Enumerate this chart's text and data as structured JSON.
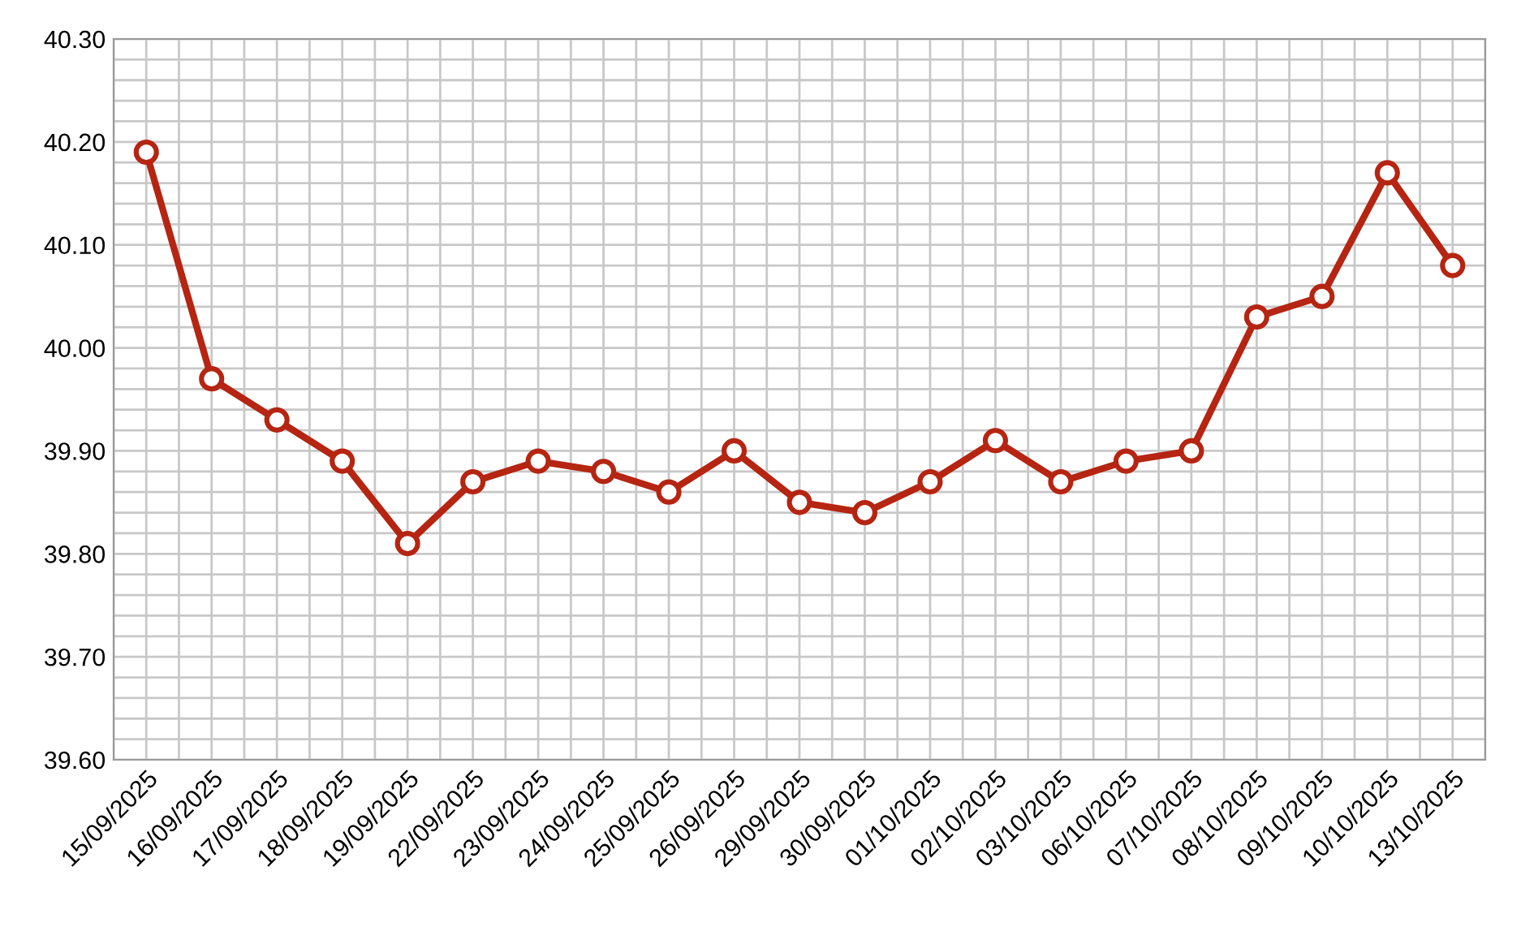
{
  "chart_data": {
    "type": "line",
    "categories": [
      "15/09/2025",
      "16/09/2025",
      "17/09/2025",
      "18/09/2025",
      "19/09/2025",
      "22/09/2025",
      "23/09/2025",
      "24/09/2025",
      "25/09/2025",
      "26/09/2025",
      "29/09/2025",
      "30/09/2025",
      "01/10/2025",
      "02/10/2025",
      "03/10/2025",
      "06/10/2025",
      "07/10/2025",
      "08/10/2025",
      "09/10/2025",
      "10/10/2025",
      "13/10/2025"
    ],
    "series": [
      {
        "color": "#b52512",
        "values": [
          40.19,
          39.97,
          39.93,
          39.89,
          39.81,
          39.87,
          39.89,
          39.88,
          39.86,
          39.9,
          39.85,
          39.84,
          39.87,
          39.91,
          39.87,
          39.89,
          39.9,
          40.03,
          40.05,
          40.17,
          40.08
        ]
      }
    ],
    "ylim": [
      39.6,
      40.3
    ],
    "yticks": [
      {
        "value": 39.6,
        "label": "39.60"
      },
      {
        "value": 39.7,
        "label": "39.70"
      },
      {
        "value": 39.8,
        "label": "39.80"
      },
      {
        "value": 39.9,
        "label": "39.90"
      },
      {
        "value": 40.0,
        "label": "40.00"
      },
      {
        "value": 40.1,
        "label": "40.10"
      },
      {
        "value": 40.2,
        "label": "40.20"
      },
      {
        "value": 40.3,
        "label": "40.30"
      }
    ],
    "grid": true,
    "marker": "circle",
    "line_style": "solid",
    "legend": false
  }
}
